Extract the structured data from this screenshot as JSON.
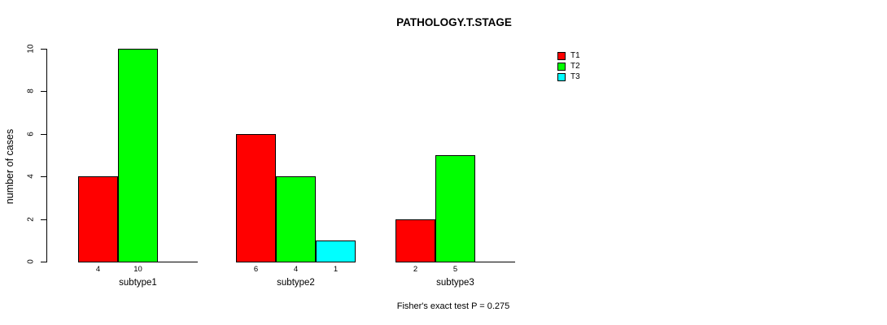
{
  "chart_data": {
    "type": "bar",
    "title": "PATHOLOGY.T.STAGE",
    "ylabel": "number of cases",
    "xlabel": "",
    "ylim": [
      0,
      10
    ],
    "yticks": [
      0,
      2,
      4,
      6,
      8,
      10
    ],
    "grid": false,
    "categories": [
      "subtype1",
      "subtype2",
      "subtype3"
    ],
    "series": [
      {
        "name": "T1",
        "color": "#FF0000",
        "values": [
          4,
          6,
          2
        ]
      },
      {
        "name": "T2",
        "color": "#00FF00",
        "values": [
          10,
          4,
          5
        ]
      },
      {
        "name": "T3",
        "color": "#00FFFF",
        "values": [
          0,
          1,
          0
        ]
      }
    ],
    "bar_value_labels_shown": true,
    "legend": {
      "position": "right",
      "entries": [
        {
          "label": "T1",
          "color": "#FF0000"
        },
        {
          "label": "T2",
          "color": "#00FF00"
        },
        {
          "label": "T3",
          "color": "#00FFFF"
        }
      ]
    },
    "annotation": "Fisher's exact test P = 0.275",
    "background_color": "#FFFFFF",
    "axis_color": "#000000"
  }
}
